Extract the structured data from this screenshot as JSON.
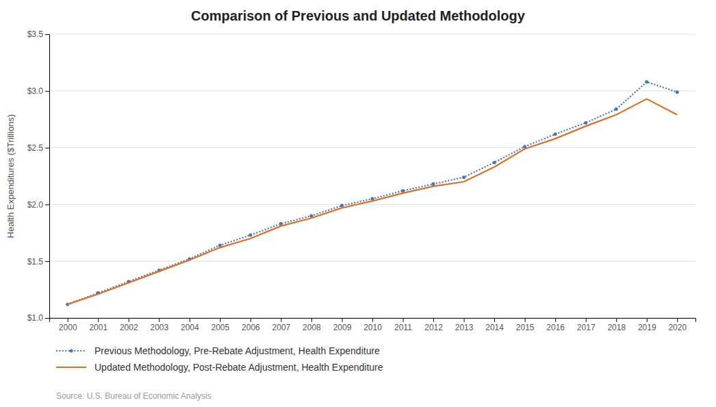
{
  "chart_data": {
    "type": "line",
    "title": "Comparison of Previous and Updated Methodology",
    "y_label": "Health Expenditures ($Trillions)",
    "source": "Source: U.S. Bureau of Economic Analysis",
    "x": [
      2000,
      2001,
      2002,
      2003,
      2004,
      2005,
      2006,
      2007,
      2008,
      2009,
      2010,
      2011,
      2012,
      2013,
      2014,
      2015,
      2016,
      2017,
      2018,
      2019,
      2020
    ],
    "xlim": [
      1999.4,
      2020.6
    ],
    "xticks": [
      2000,
      2001,
      2002,
      2003,
      2004,
      2005,
      2006,
      2007,
      2008,
      2009,
      2010,
      2011,
      2012,
      2013,
      2014,
      2015,
      2016,
      2017,
      2018,
      2019,
      2020
    ],
    "ylim": [
      1.0,
      3.5
    ],
    "yticks": [
      {
        "value": 1.0,
        "label": "$1.0"
      },
      {
        "value": 1.5,
        "label": "$1.5"
      },
      {
        "value": 2.0,
        "label": "$2.0"
      },
      {
        "value": 2.5,
        "label": "$2.5"
      },
      {
        "value": 3.0,
        "label": "$3.0"
      },
      {
        "value": 3.5,
        "label": "$3.5"
      }
    ],
    "grid": true,
    "legend": "bottom",
    "series": [
      {
        "name": "Previous Methodology, Pre-Rebate Adjustment, Health Expenditure",
        "color": "#4472C4",
        "line_style": "dotted",
        "marker": "circle",
        "values": [
          1.12,
          1.22,
          1.32,
          1.42,
          1.52,
          1.64,
          1.73,
          1.83,
          1.9,
          1.99,
          2.05,
          2.12,
          2.18,
          2.24,
          2.37,
          2.51,
          2.62,
          2.72,
          2.84,
          3.08,
          2.99
        ]
      },
      {
        "name": "Updated Methodology, Post-Rebate Adjustment, Health Expenditure",
        "color": "#E07020",
        "line_style": "solid",
        "values": [
          1.12,
          1.21,
          1.31,
          1.41,
          1.51,
          1.62,
          1.7,
          1.81,
          1.88,
          1.97,
          2.03,
          2.1,
          2.16,
          2.2,
          2.33,
          2.49,
          2.58,
          2.69,
          2.79,
          2.93,
          2.79
        ]
      }
    ]
  }
}
